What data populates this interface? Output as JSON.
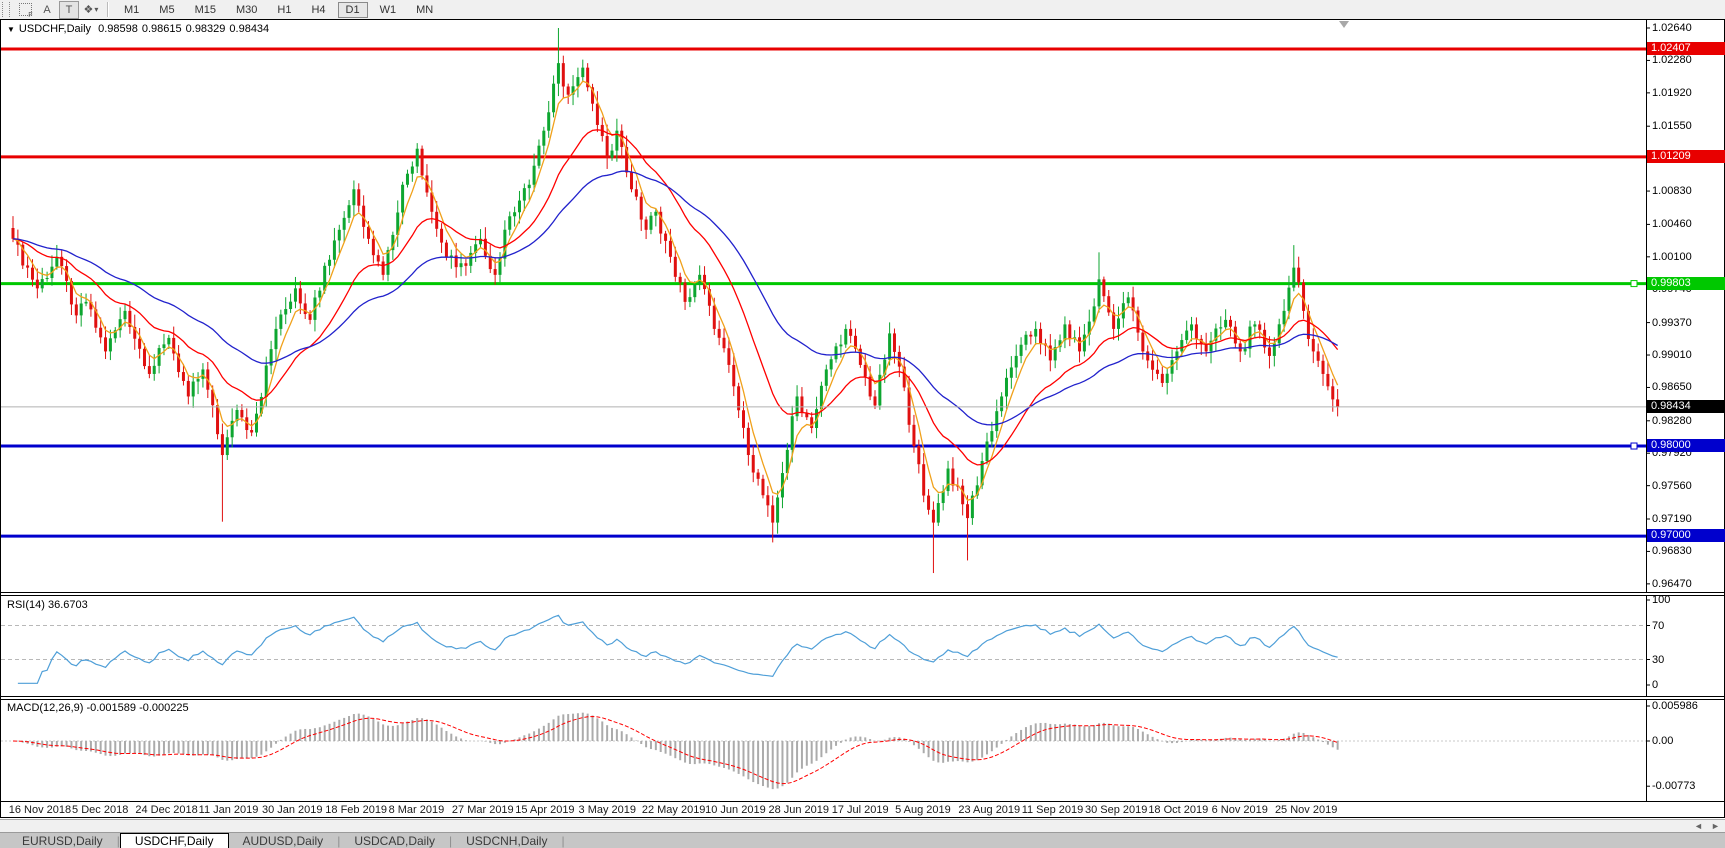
{
  "toolbar": {
    "icons": [
      {
        "name": "pointer-grid-icon",
        "glyph": "F"
      },
      {
        "name": "text-label-tool-icon",
        "glyph": "A"
      },
      {
        "name": "text-tool-icon",
        "glyph": "T"
      },
      {
        "name": "cycle-colors-icon",
        "glyph": "❖"
      }
    ],
    "timeframes": [
      "M1",
      "M5",
      "M15",
      "M30",
      "H1",
      "H4",
      "D1",
      "W1",
      "MN"
    ],
    "active_timeframe": "D1"
  },
  "chart": {
    "symbol": "USDCHF,Daily",
    "open": "0.98598",
    "high": "0.98615",
    "low": "0.98329",
    "close": "0.98434"
  },
  "tabs": [
    {
      "label": "EURUSD,Daily",
      "active": false
    },
    {
      "label": "USDCHF,Daily",
      "active": true
    },
    {
      "label": "AUDUSD,Daily",
      "active": false
    },
    {
      "label": "USDCAD,Daily",
      "active": false
    },
    {
      "label": "USDCNH,Daily",
      "active": false
    }
  ],
  "chart_data": {
    "type": "candlestick",
    "title": "USDCHF,Daily",
    "price_axis": {
      "ticks": [
        "1.02640",
        "1.02280",
        "1.01920",
        "1.01550",
        "1.00830",
        "1.00460",
        "1.00100",
        "0.99740",
        "0.99370",
        "0.99010",
        "0.98650",
        "0.98280",
        "0.97920",
        "0.97560",
        "0.97190",
        "0.96830",
        "0.96470"
      ],
      "range_top": 1.02745,
      "range_bottom": 0.9637
    },
    "levels": [
      {
        "label": "1.02407",
        "price": 1.02407,
        "color": "#e80000",
        "width": 3
      },
      {
        "label": "1.01209",
        "price": 1.01209,
        "color": "#e80000",
        "width": 3
      },
      {
        "label": "0.99803",
        "price": 0.99803,
        "color": "#00c800",
        "width": 3,
        "handle": true
      },
      {
        "label": "0.98000",
        "price": 0.98,
        "color": "#0000cd",
        "width": 3,
        "handle": true
      },
      {
        "label": "0.97000",
        "price": 0.97,
        "color": "#0000cd",
        "width": 3
      }
    ],
    "current_price": {
      "label": "0.98434",
      "price": 0.98434,
      "line_color": "#b0b0b0",
      "bg": "#000000"
    },
    "candles": {
      "count": 273,
      "up_color": "#0da630",
      "down_color": "#e01010",
      "close_anchors": [
        [
          0,
          1.003
        ],
        [
          5,
          0.9975
        ],
        [
          9,
          1.001
        ],
        [
          13,
          0.9945
        ],
        [
          15,
          0.996
        ],
        [
          19,
          0.9905
        ],
        [
          23,
          0.995
        ],
        [
          28,
          0.988
        ],
        [
          32,
          0.992
        ],
        [
          36,
          0.9855
        ],
        [
          39,
          0.9885
        ],
        [
          43,
          0.979
        ],
        [
          46,
          0.984
        ],
        [
          49,
          0.9815
        ],
        [
          54,
          0.993
        ],
        [
          58,
          0.9975
        ],
        [
          61,
          0.994
        ],
        [
          64,
          1.0
        ],
        [
          67,
          1.004
        ],
        [
          70,
          1.0085
        ],
        [
          73,
          1.003
        ],
        [
          76,
          0.999
        ],
        [
          80,
          1.009
        ],
        [
          83,
          1.013
        ],
        [
          86,
          1.006
        ],
        [
          89,
          1.001
        ],
        [
          93,
          1.0
        ],
        [
          96,
          1.003
        ],
        [
          99,
          0.999
        ],
        [
          102,
          1.0055
        ],
        [
          106,
          1.009
        ],
        [
          109,
          1.015
        ],
        [
          112,
          1.0225
        ],
        [
          114,
          1.019
        ],
        [
          117,
          1.022
        ],
        [
          119,
          1.018
        ],
        [
          122,
          1.012
        ],
        [
          124,
          1.015
        ],
        [
          127,
          1.0085
        ],
        [
          130,
          1.004
        ],
        [
          132,
          1.006
        ],
        [
          135,
          1.001
        ],
        [
          138,
          0.996
        ],
        [
          141,
          0.999
        ],
        [
          144,
          0.993
        ],
        [
          147,
          0.989
        ],
        [
          151,
          0.979
        ],
        [
          156,
          0.9715
        ],
        [
          158,
          0.977
        ],
        [
          161,
          0.9855
        ],
        [
          164,
          0.982
        ],
        [
          167,
          0.9885
        ],
        [
          171,
          0.993
        ],
        [
          174,
          0.989
        ],
        [
          177,
          0.9845
        ],
        [
          180,
          0.9925
        ],
        [
          183,
          0.9865
        ],
        [
          185,
          0.98
        ],
        [
          187,
          0.9745
        ],
        [
          189,
          0.9715
        ],
        [
          192,
          0.9775
        ],
        [
          196,
          0.972
        ],
        [
          200,
          0.9805
        ],
        [
          203,
          0.9855
        ],
        [
          206,
          0.99
        ],
        [
          210,
          0.993
        ],
        [
          213,
          0.9895
        ],
        [
          216,
          0.9935
        ],
        [
          219,
          0.9905
        ],
        [
          222,
          0.9955
        ],
        [
          223,
          0.9985
        ],
        [
          226,
          0.993
        ],
        [
          229,
          0.9965
        ],
        [
          232,
          0.9905
        ],
        [
          236,
          0.987
        ],
        [
          239,
          0.9905
        ],
        [
          242,
          0.9935
        ],
        [
          245,
          0.9905
        ],
        [
          249,
          0.994
        ],
        [
          252,
          0.9905
        ],
        [
          255,
          0.9935
        ],
        [
          258,
          0.99
        ],
        [
          261,
          0.995
        ],
        [
          263,
          0.9998
        ],
        [
          265,
          0.995
        ],
        [
          267,
          0.9905
        ],
        [
          269,
          0.988
        ],
        [
          272,
          0.98434
        ]
      ],
      "special_wicks": [
        {
          "i": 43,
          "low": 0.9716
        },
        {
          "i": 112,
          "high": 1.0264
        },
        {
          "i": 156,
          "low": 0.9693
        },
        {
          "i": 189,
          "low": 0.9659
        },
        {
          "i": 196,
          "low": 0.9673
        },
        {
          "i": 223,
          "high": 1.0015
        },
        {
          "i": 263,
          "high": 1.0023
        }
      ]
    },
    "moving_averages": [
      {
        "name": "ma-fast",
        "period": 5,
        "color": "#f0a11b"
      },
      {
        "name": "ma-mid",
        "period": 20,
        "color": "#ff0000"
      },
      {
        "name": "ma-slow",
        "period": 45,
        "color": "#2222cc"
      }
    ],
    "x_axis": {
      "labels": [
        {
          "label": "16 Nov 2018",
          "i": 2
        },
        {
          "label": "5 Dec 2018",
          "i": 15
        },
        {
          "label": "24 Dec 2018",
          "i": 28
        },
        {
          "label": "11 Jan 2019",
          "i": 41
        },
        {
          "label": "30 Jan 2019",
          "i": 54
        },
        {
          "label": "18 Feb 2019",
          "i": 67
        },
        {
          "label": "8 Mar 2019",
          "i": 80
        },
        {
          "label": "27 Mar 2019",
          "i": 93
        },
        {
          "label": "15 Apr 2019",
          "i": 106
        },
        {
          "label": "3 May 2019",
          "i": 119
        },
        {
          "label": "22 May 2019",
          "i": 132
        },
        {
          "label": "10 Jun 2019",
          "i": 145
        },
        {
          "label": "28 Jun 2019",
          "i": 158
        },
        {
          "label": "17 Jul 2019",
          "i": 171
        },
        {
          "label": "5 Aug 2019",
          "i": 184
        },
        {
          "label": "23 Aug 2019",
          "i": 197
        },
        {
          "label": "11 Sep 2019",
          "i": 210
        },
        {
          "label": "30 Sep 2019",
          "i": 223
        },
        {
          "label": "18 Oct 2019",
          "i": 236
        },
        {
          "label": "6 Nov 2019",
          "i": 249
        },
        {
          "label": "25 Nov 2019",
          "i": 262
        }
      ]
    },
    "rsi": {
      "label": "RSI(14) 36.6703",
      "period": 14,
      "current": 36.6703,
      "color": "#4f9fd8",
      "level_color": "#b8b8b8",
      "axis_ticks": [
        {
          "label": "100",
          "v": 100
        },
        {
          "label": "70",
          "v": 70
        },
        {
          "label": "30",
          "v": 30
        },
        {
          "label": "0",
          "v": 0
        }
      ],
      "dashed_levels": [
        70,
        30
      ]
    },
    "macd": {
      "label": "MACD(12,26,9) -0.001589 -0.000225",
      "fast": 12,
      "slow": 26,
      "signal_period": 9,
      "main_value": -0.001589,
      "signal_value": -0.000225,
      "hist_color": "#ababab",
      "signal_color": "#ff0000",
      "axis_ticks": [
        {
          "label": "0.005986",
          "v": 0.005986
        },
        {
          "label": "0.00",
          "v": 0
        },
        {
          "label": "-0.00773",
          "v": -0.00773
        }
      ]
    }
  },
  "scrollbar": {
    "left_arrow": "◄",
    "right_arrow": "►"
  }
}
